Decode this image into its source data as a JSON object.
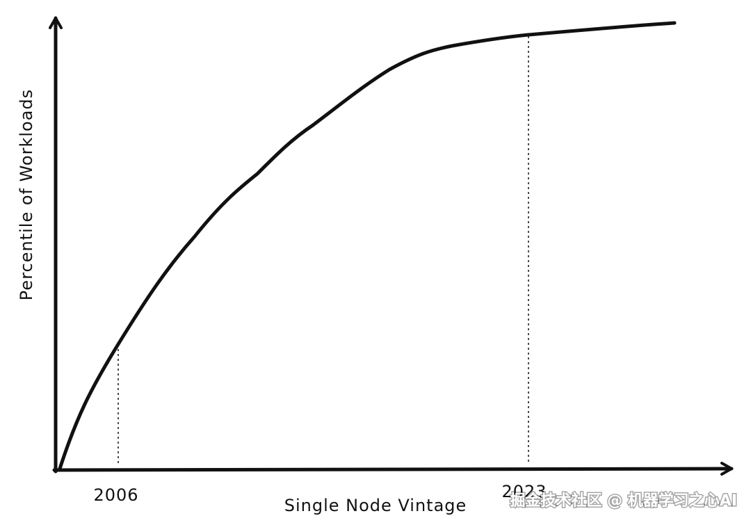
{
  "y_axis": {
    "label": "Percentile of Workloads"
  },
  "x_axis": {
    "label": "Single Node Vintage",
    "markers": [
      "2006",
      "2023"
    ]
  },
  "watermark": "掘金技术社区 @ 机器学习之心AI"
}
